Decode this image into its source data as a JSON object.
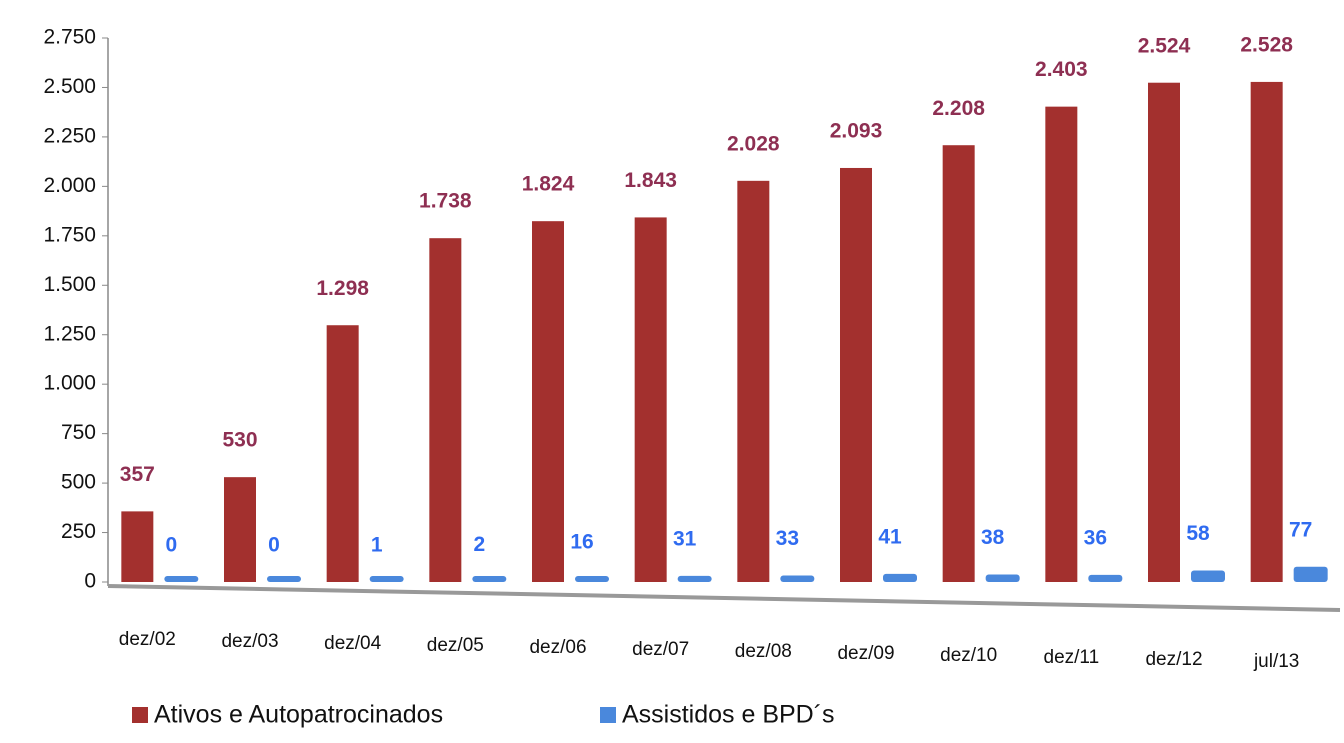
{
  "chart_data": {
    "type": "bar",
    "categories": [
      "dez/02",
      "dez/03",
      "dez/04",
      "dez/05",
      "dez/06",
      "dez/07",
      "dez/08",
      "dez/09",
      "dez/10",
      "dez/11",
      "dez/12",
      "jul/13"
    ],
    "series": [
      {
        "name": "Ativos e Autopatrocinados",
        "color": "#a3302e",
        "values": [
          357,
          530,
          1298,
          1738,
          1824,
          1843,
          2028,
          2093,
          2208,
          2403,
          2524,
          2528
        ],
        "value_labels": [
          "357",
          "530",
          "1.298",
          "1.738",
          "1.824",
          "1.843",
          "2.028",
          "2.093",
          "2.208",
          "2.403",
          "2.524",
          "2.528"
        ]
      },
      {
        "name": "Assistidos e BPD´s",
        "color": "#4a88dc",
        "values": [
          0,
          0,
          1,
          2,
          16,
          31,
          33,
          41,
          38,
          36,
          58,
          77
        ]
      }
    ],
    "ylim": [
      0,
      2750
    ],
    "yticks": [
      0,
      250,
      500,
      750,
      {
        "value": 1000,
        "label": "1.000"
      },
      {
        "value": 1250,
        "label": "1.250"
      },
      {
        "value": 1500,
        "label": "1.500"
      },
      {
        "value": 1750,
        "label": "1.750"
      },
      {
        "value": 2000,
        "label": "2.000"
      },
      {
        "value": 2250,
        "label": "2.250"
      },
      {
        "value": 2500,
        "label": "2.500"
      },
      {
        "value": 2750,
        "label": "2.750"
      }
    ],
    "legend": "bottom"
  }
}
